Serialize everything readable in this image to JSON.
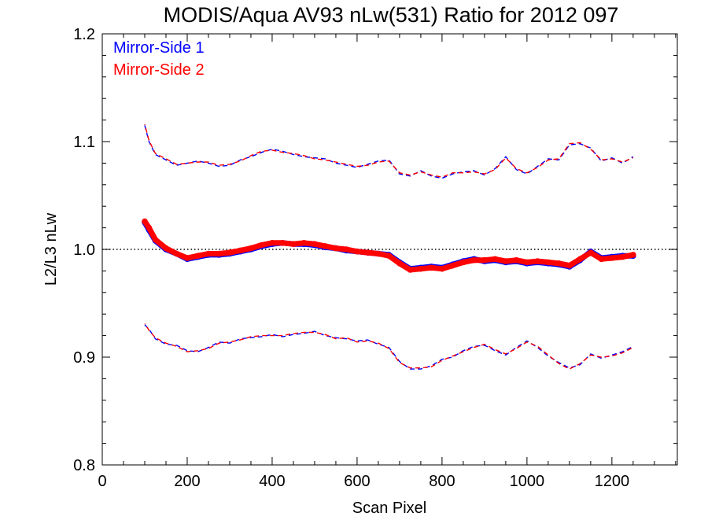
{
  "chart_data": {
    "type": "line",
    "title": "MODIS/Aqua AV93 nLw(531) Ratio for 2012 097",
    "xlabel": "Scan Pixel",
    "ylabel": "L2/L3 nLw",
    "xlim": [
      0,
      1354
    ],
    "ylim": [
      0.8,
      1.2
    ],
    "xticks": [
      0,
      200,
      400,
      600,
      800,
      1000,
      1200
    ],
    "xtick_labels": [
      "0",
      "200",
      "400",
      "600",
      "800",
      "1000",
      "1200"
    ],
    "yticks": [
      0.8,
      0.9,
      1.0,
      1.1,
      1.2
    ],
    "ytick_labels": [
      "0.8",
      "0.9",
      "1.0",
      "1.1",
      "1.2"
    ],
    "reference_line": 1.0,
    "legend_position": "top-left",
    "colors": {
      "ms1": "#0000ff",
      "ms2": "#ff0000",
      "reference": "#000000"
    },
    "legend": [
      {
        "label": "Mirror-Side 1",
        "color": "#0000ff"
      },
      {
        "label": "Mirror-Side 2",
        "color": "#ff0000"
      }
    ],
    "x": [
      100,
      110,
      125,
      150,
      175,
      200,
      225,
      250,
      275,
      300,
      325,
      350,
      375,
      400,
      425,
      450,
      475,
      500,
      525,
      550,
      575,
      600,
      625,
      650,
      675,
      700,
      725,
      750,
      775,
      800,
      825,
      850,
      875,
      900,
      925,
      950,
      975,
      1000,
      1025,
      1050,
      1075,
      1100,
      1125,
      1150,
      1175,
      1200,
      1225,
      1250
    ],
    "series": [
      {
        "name": "Mirror-Side 1",
        "color": "#0000ff",
        "mean": [
          1.025,
          1.018,
          1.008,
          1.0,
          0.996,
          0.991,
          0.993,
          0.995,
          0.995,
          0.996,
          0.998,
          1.0,
          1.003,
          1.005,
          1.006,
          1.005,
          1.005,
          1.004,
          1.002,
          1.001,
          0.999,
          0.998,
          0.997,
          0.996,
          0.995,
          0.988,
          0.982,
          0.983,
          0.984,
          0.983,
          0.986,
          0.989,
          0.991,
          0.989,
          0.99,
          0.988,
          0.989,
          0.987,
          0.988,
          0.987,
          0.986,
          0.984,
          0.99,
          0.998,
          0.992,
          0.993,
          0.994,
          0.994
        ],
        "upper": [
          1.115,
          1.1,
          1.088,
          1.083,
          1.078,
          1.08,
          1.082,
          1.08,
          1.077,
          1.078,
          1.083,
          1.086,
          1.09,
          1.093,
          1.091,
          1.088,
          1.086,
          1.085,
          1.084,
          1.08,
          1.078,
          1.076,
          1.079,
          1.082,
          1.083,
          1.07,
          1.068,
          1.073,
          1.068,
          1.066,
          1.07,
          1.072,
          1.073,
          1.069,
          1.075,
          1.086,
          1.074,
          1.07,
          1.077,
          1.084,
          1.083,
          1.097,
          1.098,
          1.094,
          1.082,
          1.085,
          1.08,
          1.086
        ],
        "lower": [
          0.93,
          0.926,
          0.917,
          0.912,
          0.911,
          0.906,
          0.905,
          0.909,
          0.914,
          0.913,
          0.917,
          0.918,
          0.919,
          0.921,
          0.919,
          0.921,
          0.922,
          0.924,
          0.92,
          0.918,
          0.917,
          0.915,
          0.916,
          0.912,
          0.909,
          0.896,
          0.889,
          0.889,
          0.892,
          0.898,
          0.9,
          0.906,
          0.91,
          0.911,
          0.906,
          0.902,
          0.909,
          0.915,
          0.909,
          0.901,
          0.895,
          0.89,
          0.893,
          0.903,
          0.899,
          0.902,
          0.905,
          0.91
        ]
      },
      {
        "name": "Mirror-Side 2",
        "color": "#ff0000",
        "mean": [
          1.026,
          1.02,
          1.009,
          1.001,
          0.996,
          0.992,
          0.994,
          0.996,
          0.996,
          0.997,
          0.999,
          1.001,
          1.004,
          1.006,
          1.006,
          1.005,
          1.006,
          1.005,
          1.003,
          1.001,
          1.0,
          0.998,
          0.997,
          0.996,
          0.994,
          0.987,
          0.981,
          0.982,
          0.983,
          0.982,
          0.985,
          0.988,
          0.99,
          0.99,
          0.991,
          0.989,
          0.99,
          0.988,
          0.989,
          0.988,
          0.987,
          0.985,
          0.991,
          0.997,
          0.991,
          0.992,
          0.993,
          0.995
        ],
        "upper": [
          1.116,
          1.101,
          1.089,
          1.084,
          1.079,
          1.08,
          1.081,
          1.081,
          1.078,
          1.079,
          1.082,
          1.087,
          1.091,
          1.092,
          1.09,
          1.089,
          1.087,
          1.084,
          1.083,
          1.081,
          1.079,
          1.077,
          1.078,
          1.081,
          1.082,
          1.071,
          1.069,
          1.072,
          1.069,
          1.067,
          1.071,
          1.071,
          1.072,
          1.07,
          1.074,
          1.085,
          1.075,
          1.071,
          1.076,
          1.083,
          1.084,
          1.098,
          1.099,
          1.093,
          1.083,
          1.084,
          1.081,
          1.085
        ],
        "lower": [
          0.931,
          0.925,
          0.918,
          0.913,
          0.91,
          0.905,
          0.906,
          0.908,
          0.913,
          0.914,
          0.916,
          0.919,
          0.92,
          0.92,
          0.92,
          0.922,
          0.923,
          0.923,
          0.921,
          0.917,
          0.918,
          0.914,
          0.915,
          0.913,
          0.908,
          0.895,
          0.89,
          0.89,
          0.891,
          0.897,
          0.901,
          0.905,
          0.909,
          0.912,
          0.907,
          0.903,
          0.908,
          0.914,
          0.91,
          0.902,
          0.894,
          0.889,
          0.894,
          0.902,
          0.9,
          0.901,
          0.904,
          0.909
        ]
      }
    ]
  }
}
